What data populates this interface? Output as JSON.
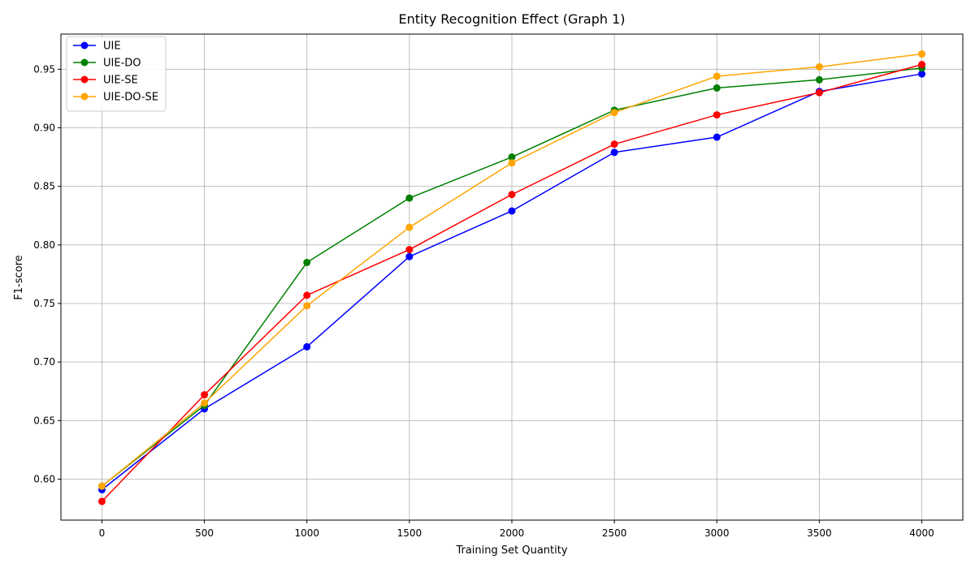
{
  "chart_data": {
    "type": "line",
    "title": "Entity Recognition Effect (Graph 1)",
    "xlabel": "Training Set Quantity",
    "ylabel": "F1-score",
    "x": [
      0,
      500,
      1000,
      1500,
      2000,
      2500,
      3000,
      3500,
      4000
    ],
    "xlim": [
      -200,
      4200
    ],
    "ylim": [
      0.565,
      0.98
    ],
    "xticks": [
      0,
      500,
      1000,
      1500,
      2000,
      2500,
      3000,
      3500,
      4000
    ],
    "yticks": [
      0.6,
      0.65,
      0.7,
      0.75,
      0.8,
      0.85,
      0.9,
      0.95
    ],
    "xtick_labels": [
      "0",
      "500",
      "1000",
      "1500",
      "2000",
      "2500",
      "3000",
      "3500",
      "4000"
    ],
    "ytick_labels": [
      "0.60",
      "0.65",
      "0.70",
      "0.75",
      "0.80",
      "0.85",
      "0.90",
      "0.95"
    ],
    "grid": true,
    "legend_position": "upper-left",
    "series": [
      {
        "name": "UIE",
        "color": "#0000ff",
        "values": [
          0.591,
          0.66,
          0.713,
          0.79,
          0.829,
          0.879,
          0.892,
          0.931,
          0.946
        ]
      },
      {
        "name": "UIE-DO",
        "color": "#008000",
        "values": [
          0.594,
          0.663,
          0.785,
          0.84,
          0.875,
          0.915,
          0.934,
          0.941,
          0.951
        ]
      },
      {
        "name": "UIE-SE",
        "color": "#ff0000",
        "values": [
          0.581,
          0.672,
          0.757,
          0.796,
          0.843,
          0.886,
          0.911,
          0.93,
          0.954
        ]
      },
      {
        "name": "UIE-DO-SE",
        "color": "#ffa500",
        "values": [
          0.594,
          0.665,
          0.748,
          0.815,
          0.87,
          0.913,
          0.944,
          0.952,
          0.963
        ]
      }
    ]
  }
}
